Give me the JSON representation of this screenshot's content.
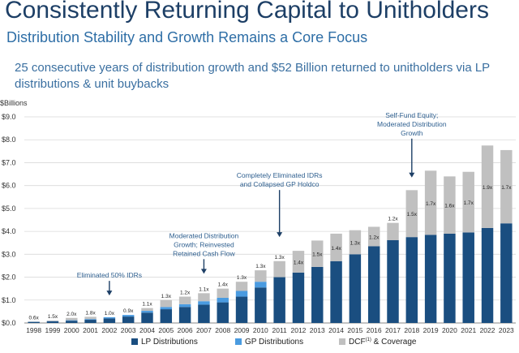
{
  "header": {
    "title": "Consistently Returning Capital to Unitholders",
    "subtitle": "Distribution Stability and Growth Remains a Core Focus",
    "description": "25 consecutive years of distribution growth and $52 Billion returned to unitholders via LP distributions & unit buybacks"
  },
  "chart_data": {
    "type": "bar",
    "stacked": true,
    "ylabel": "$Billions",
    "ylim": [
      0,
      9
    ],
    "yticks": [
      "$0.0",
      "$1.0",
      "$2.0",
      "$3.0",
      "$4.0",
      "$5.0",
      "$6.0",
      "$7.0",
      "$8.0",
      "$9.0"
    ],
    "grid": true,
    "legend_position": "bottom",
    "categories": [
      "1998",
      "1999",
      "2000",
      "2001",
      "2002",
      "2003",
      "2004",
      "2005",
      "2006",
      "2007",
      "2008",
      "2009",
      "2010",
      "2011",
      "2012",
      "2013",
      "2014",
      "2015",
      "2016",
      "2017",
      "2018",
      "2019",
      "2020",
      "2021",
      "2022",
      "2023"
    ],
    "series": [
      {
        "name": "LP Distributions",
        "color": "#1a4e80",
        "values": [
          0.05,
          0.07,
          0.1,
          0.14,
          0.2,
          0.28,
          0.45,
          0.6,
          0.7,
          0.8,
          0.9,
          1.15,
          1.55,
          2.0,
          2.2,
          2.45,
          2.7,
          3.0,
          3.35,
          3.62,
          3.75,
          3.85,
          3.9,
          3.95,
          4.15,
          4.35
        ]
      },
      {
        "name": "GP Distributions",
        "color": "#4a9be0",
        "values": [
          0.0,
          0.01,
          0.02,
          0.03,
          0.05,
          0.07,
          0.08,
          0.1,
          0.12,
          0.15,
          0.2,
          0.25,
          0.25,
          0.0,
          0.0,
          0.0,
          0.0,
          0.0,
          0.0,
          0.0,
          0.0,
          0.0,
          0.0,
          0.0,
          0.0,
          0.0
        ]
      },
      {
        "name": "DCF(1) & Coverage",
        "color": "#c0c0c0",
        "values": [
          0.0,
          0.03,
          0.1,
          0.1,
          0.0,
          0.0,
          0.12,
          0.3,
          0.33,
          0.35,
          0.4,
          0.4,
          0.5,
          0.7,
          0.95,
          1.15,
          1.2,
          1.05,
          0.85,
          0.75,
          2.05,
          2.8,
          2.5,
          2.65,
          3.6,
          3.2
        ]
      }
    ],
    "coverage_labels": [
      "0.6x",
      "1.5x",
      "2.0x",
      "1.8x",
      "1.0x",
      "0.9x",
      "1.1x",
      "1.3x",
      "1.2x",
      "1.1x",
      "1.4x",
      "1.3x",
      "1.3x",
      "1.3x",
      "1.4x",
      "1.5x",
      "1.4x",
      "1.3x",
      "1.2x",
      "1.2x",
      "1.5x",
      "1.7x",
      "1.6x",
      "1.7x",
      "1.9x",
      "1.7x"
    ],
    "annotations": [
      {
        "text": [
          "Eliminated 50% IDRs"
        ],
        "year": "2002",
        "arrow_to": 1.2
      },
      {
        "text": [
          "Moderated Distribution",
          "Growth; Reinvested",
          "Retained Cash Flow"
        ],
        "year": "2007",
        "arrow_to": 2.15
      },
      {
        "text": [
          "Completely Eliminated IDRs",
          "and Collapsed GP Holdco"
        ],
        "year": "2011",
        "arrow_to": 3.75
      },
      {
        "text": [
          "Self-Fund Equity;",
          "Moderated Distribution",
          "Growth"
        ],
        "year": "2018",
        "arrow_to": 6.35
      }
    ],
    "legend": [
      {
        "label": "LP Distributions",
        "color": "#1a4e80"
      },
      {
        "label": "GP Distributions",
        "color": "#4a9be0"
      },
      {
        "label": "DCF",
        "sup": "(1)",
        "rest": " & Coverage",
        "color": "#c0c0c0"
      }
    ]
  }
}
